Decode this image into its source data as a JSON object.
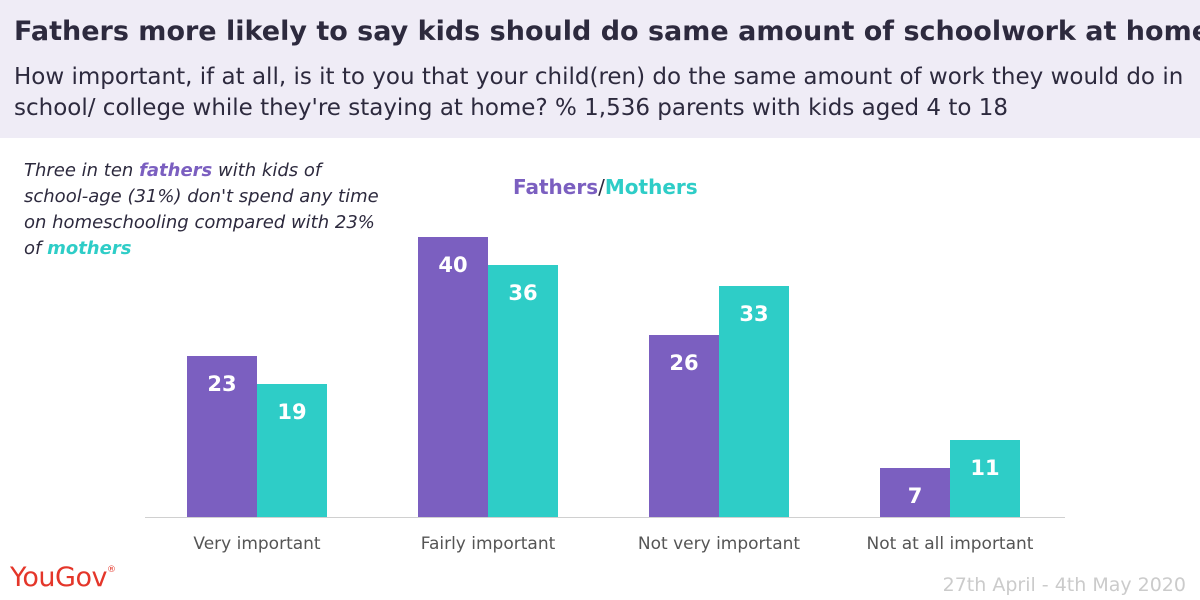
{
  "title": "Fathers more likely to say kids should do same amount of schoolwork at home",
  "subtitle": "How important, if at all, is it to you that your child(ren) do the same amount of work they would do in school/ college while they're staying at home? % 1,536 parents with kids aged 4 to 18",
  "note": {
    "part1": "Three in ten ",
    "fathers": "fathers",
    "part2": " with kids of school-age (31%) don't spend any time on homeschooling compared with 23% of ",
    "mothers": "mothers"
  },
  "legend": {
    "fathers": "Fathers",
    "separator": "/",
    "mothers": "Mothers"
  },
  "logo": {
    "text": "YouGov",
    "mark": "®"
  },
  "date": "27th April - 4th May 2020",
  "colors": {
    "fathers": "#7b5fc0",
    "mothers": "#2ecdc7",
    "text": "#2d2a3e",
    "header_bg": "#efecf6",
    "logo": "#e4362a"
  },
  "chart_data": {
    "type": "bar",
    "categories": [
      "Very important",
      "Fairly important",
      "Not very important",
      "Not at all important"
    ],
    "series": [
      {
        "name": "Fathers",
        "values": [
          23,
          40,
          26,
          7
        ]
      },
      {
        "name": "Mothers",
        "values": [
          19,
          36,
          33,
          11
        ]
      }
    ],
    "ylim": [
      0,
      40
    ],
    "grid": false,
    "data_labels": true,
    "legend_placement": "top-center"
  }
}
